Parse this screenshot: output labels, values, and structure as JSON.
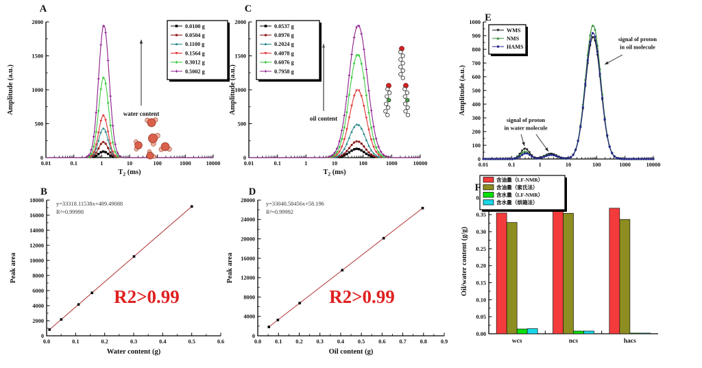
{
  "styles": {
    "highlight_color": "#e02020",
    "fit_line_color": "#b03030",
    "axis_color": "#000000"
  },
  "chart_data": [
    {
      "id": "A",
      "panel_label": "A",
      "type": "line-log",
      "x_axis": {
        "label": "T2 (ms)",
        "scale": "log",
        "min_exp": -2,
        "max_exp": 4,
        "tick_labels": [
          "0.01",
          "0.1",
          "1",
          "10",
          "100",
          "1000",
          "10000"
        ]
      },
      "y_axis": {
        "label": "Amplitude (a.u.)",
        "min": 0,
        "max": 2000,
        "major_step": 500,
        "minor_step": 250,
        "tick_labels": [
          "0",
          "500",
          "1000",
          "1500",
          "2000"
        ]
      },
      "annotations": {
        "arrow_label": "water content",
        "illustration": "water-molecules"
      },
      "series": [
        {
          "label": "0.0100 g",
          "color": "#000000",
          "marker": "square",
          "peaks": [
            {
              "t2_ms": 1.15,
              "amplitude": 90,
              "log_sigma": 0.17
            }
          ]
        },
        {
          "label": "0.0504 g",
          "color": "#8b1a1a",
          "marker": "circle",
          "peaks": [
            {
              "t2_ms": 1.15,
              "amplitude": 230,
              "log_sigma": 0.17
            }
          ]
        },
        {
          "label": "0.1100 g",
          "color": "#2e8b8b",
          "marker": "triangle-up",
          "peaks": [
            {
              "t2_ms": 1.15,
              "amplitude": 430,
              "log_sigma": 0.17
            }
          ]
        },
        {
          "label": "0.1564 g",
          "color": "#e03232",
          "marker": "triangle-down",
          "peaks": [
            {
              "t2_ms": 1.15,
              "amplitude": 620,
              "log_sigma": 0.17
            }
          ]
        },
        {
          "label": "0.3012 g",
          "color": "#3fca44",
          "marker": "diamond",
          "peaks": [
            {
              "t2_ms": 1.18,
              "amplitude": 1180,
              "log_sigma": 0.18
            }
          ]
        },
        {
          "label": "0.5002 g",
          "color": "#8b1a8b",
          "marker": "star",
          "peaks": [
            {
              "t2_ms": 1.2,
              "amplitude": 1950,
              "log_sigma": 0.19
            }
          ]
        }
      ]
    },
    {
      "id": "C",
      "panel_label": "C",
      "type": "line-log",
      "x_axis": {
        "label": "T2 (ms)",
        "scale": "log",
        "min_exp": -2,
        "max_exp": 4,
        "tick_labels": [
          "0.01",
          "0.1",
          "1",
          "10",
          "100",
          "1000",
          "10000"
        ]
      },
      "y_axis": {
        "label": "Amplitude (a.u.)",
        "min": 0,
        "max": 2000,
        "major_step": 500,
        "minor_step": 250,
        "tick_labels": [
          "0",
          "500",
          "1000",
          "1500",
          "2000"
        ]
      },
      "annotations": {
        "arrow_label": "oil content",
        "illustration": "oil-molecules"
      },
      "series": [
        {
          "label": "0.0537 g",
          "color": "#000000",
          "marker": "square",
          "peaks": [
            {
              "t2_ms": 60,
              "amplitude": 130,
              "log_sigma": 0.26
            }
          ]
        },
        {
          "label": "0.0970 g",
          "color": "#8b1a1a",
          "marker": "circle",
          "peaks": [
            {
              "t2_ms": 62,
              "amplitude": 240,
              "log_sigma": 0.27
            }
          ]
        },
        {
          "label": "0.2024 g",
          "color": "#2e8b8b",
          "marker": "triangle-up",
          "peaks": [
            {
              "t2_ms": 63,
              "amplitude": 490,
              "log_sigma": 0.28
            }
          ]
        },
        {
          "label": "0.4078 g",
          "color": "#e03232",
          "marker": "triangle-down",
          "peaks": [
            {
              "t2_ms": 65,
              "amplitude": 1000,
              "log_sigma": 0.29
            }
          ]
        },
        {
          "label": "0.6076 g",
          "color": "#3fca44",
          "marker": "diamond",
          "peaks": [
            {
              "t2_ms": 65,
              "amplitude": 1520,
              "log_sigma": 0.3
            }
          ]
        },
        {
          "label": "0.7958 g",
          "color": "#8b1a8b",
          "marker": "star",
          "peaks": [
            {
              "t2_ms": 67,
              "amplitude": 1950,
              "log_sigma": 0.32
            }
          ]
        }
      ]
    },
    {
      "id": "E",
      "panel_label": "E",
      "type": "line-log",
      "x_axis": {
        "label": "",
        "scale": "log",
        "min_exp": -2,
        "max_exp": 4,
        "tick_labels": [
          "0.01",
          "0.1",
          "1",
          "10",
          "100",
          "1000",
          "10000"
        ]
      },
      "y_axis": {
        "label": "Amplitude (a.u.)",
        "min": 0,
        "max": 1000,
        "major_step": 100,
        "minor_step": 50,
        "tick_labels": [
          "0",
          "100",
          "200",
          "300",
          "400",
          "500",
          "600",
          "700",
          "800",
          "900",
          "1000"
        ]
      },
      "annotations": {
        "oil_peak_label": [
          "signal of proton",
          "in oil molecule"
        ],
        "water_peak_label": [
          "signal of proton",
          "in water molecule"
        ]
      },
      "series": [
        {
          "label": "WMS",
          "color": "#111111",
          "marker": "triangle-down",
          "peaks": [
            {
              "t2_ms": 0.3,
              "amplitude": 75,
              "log_sigma": 0.16
            },
            {
              "t2_ms": 2.4,
              "amplitude": 38,
              "log_sigma": 0.22
            },
            {
              "t2_ms": 75,
              "amplitude": 890,
              "log_sigma": 0.27
            }
          ]
        },
        {
          "label": "NMS",
          "color": "#2e8b2e",
          "marker": "triangle-up",
          "peaks": [
            {
              "t2_ms": 0.3,
              "amplitude": 55,
              "log_sigma": 0.16
            },
            {
              "t2_ms": 2.4,
              "amplitude": 33,
              "log_sigma": 0.22
            },
            {
              "t2_ms": 75,
              "amplitude": 975,
              "log_sigma": 0.27
            }
          ]
        },
        {
          "label": "HAMS",
          "color": "#26268b",
          "marker": "circle",
          "peaks": [
            {
              "t2_ms": 0.32,
              "amplitude": 42,
              "log_sigma": 0.16
            },
            {
              "t2_ms": 2.5,
              "amplitude": 30,
              "log_sigma": 0.22
            },
            {
              "t2_ms": 75,
              "amplitude": 920,
              "log_sigma": 0.27
            }
          ]
        }
      ]
    },
    {
      "id": "B",
      "panel_label": "B",
      "type": "scatter-fit",
      "x_axis": {
        "label": "Water content (g)",
        "min": 0,
        "max": 0.6,
        "major_step": 0.1,
        "minor_step": 0.05,
        "tick_labels": [
          "0.0",
          "0.1",
          "0.2",
          "0.3",
          "0.4",
          "0.5",
          "0.6"
        ]
      },
      "y_axis": {
        "label": "Peak area",
        "min": 0,
        "max": 18000,
        "major_step": 2000,
        "minor_step": 1000,
        "tick_labels": [
          "0",
          "2000",
          "4000",
          "6000",
          "8000",
          "10000",
          "12000",
          "14000",
          "16000",
          "18000"
        ]
      },
      "points": {
        "x": [
          0.01,
          0.0504,
          0.11,
          0.1564,
          0.3012,
          0.5002
        ],
        "y": [
          823,
          2169,
          4154,
          5700,
          10525,
          17155
        ]
      },
      "fit": {
        "slope": 33318.11538,
        "intercept": 489.49088,
        "x_from": 0.01,
        "x_to": 0.5002,
        "equation": "y=33318.11538x+489.49088",
        "r_squared": "R²=0.99998"
      },
      "highlight": "R2>0.99"
    },
    {
      "id": "D",
      "panel_label": "D",
      "type": "scatter-fit",
      "x_axis": {
        "label": "Oil content (g)",
        "min": 0,
        "max": 0.9,
        "major_step": 0.1,
        "minor_step": 0.05,
        "tick_labels": [
          "0.0",
          "0.1",
          "0.2",
          "0.3",
          "0.4",
          "0.5",
          "0.6",
          "0.7",
          "0.8",
          "0.9"
        ]
      },
      "y_axis": {
        "label": "Peak area",
        "min": 0,
        "max": 28000,
        "major_step": 4000,
        "minor_step": 2000,
        "tick_labels": [
          "0",
          "4000",
          "8000",
          "12000",
          "16000",
          "20000",
          "24000",
          "28000"
        ]
      },
      "points": {
        "x": [
          0.0537,
          0.097,
          0.2024,
          0.4078,
          0.6076,
          0.7958
        ],
        "y": [
          1833,
          3263,
          6746,
          13532,
          20134,
          26352
        ]
      },
      "fit": {
        "slope": 33040.58456,
        "intercept": 58.196,
        "x_from": 0.0537,
        "x_to": 0.7958,
        "equation": "y=33040.58456x+58.196",
        "r_squared": "R²=0.99992"
      },
      "highlight": "R2>0.99"
    },
    {
      "id": "F",
      "panel_label": "F",
      "type": "bar",
      "categories": [
        "wcs",
        "ncs",
        "hacs"
      ],
      "y_axis": {
        "label": "Oil/water content (g/g)",
        "min": 0,
        "max": 0.4,
        "axis_max": 0.425,
        "major_step": 0.05,
        "minor_step": 0.025,
        "tick_labels": [
          "0.00",
          "0.05",
          "0.10",
          "0.15",
          "0.20",
          "0.25",
          "0.30",
          "0.35",
          "0.40"
        ]
      },
      "series": [
        {
          "label": "含油量（LF-NMR）",
          "color": "#f43b3b",
          "values": [
            0.355,
            0.394,
            0.369
          ]
        },
        {
          "label": "含油量（索氏法）",
          "color": "#8d8d21",
          "values": [
            0.327,
            0.354,
            0.336
          ]
        },
        {
          "label": "含水量（LF-NMR）",
          "color": "#0ae00a",
          "values": [
            0.014,
            0.008,
            0.002
          ]
        },
        {
          "label": "含水量（烘箱法）",
          "color": "#17d8e8",
          "values": [
            0.015,
            0.008,
            0.002
          ]
        }
      ]
    }
  ]
}
